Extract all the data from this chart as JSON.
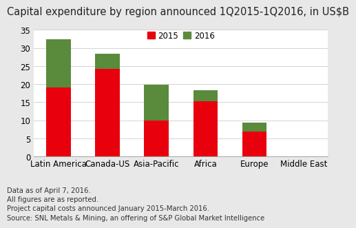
{
  "title": "Capital expenditure by region announced 1Q2015-1Q2016, in US$B",
  "categories": [
    "Latin America",
    "Canada-US",
    "Asia-Pacific",
    "Africa",
    "Europe",
    "Middle East"
  ],
  "values_2015": [
    19.0,
    24.2,
    10.0,
    15.3,
    7.0,
    0.0
  ],
  "values_2016": [
    13.3,
    4.2,
    9.8,
    3.0,
    2.3,
    0.15
  ],
  "color_2015": "#e8000d",
  "color_2016": "#5a8a3c",
  "ylim": [
    0,
    35
  ],
  "yticks": [
    0,
    5,
    10,
    15,
    20,
    25,
    30,
    35
  ],
  "legend_labels": [
    "2015",
    "2016"
  ],
  "footnote": "Data as of April 7, 2016.\nAll figures are as reported.\nProject capital costs announced January 2015-March 2016.\nSource: SNL Metals & Mining, an offering of S&P Global Market Intelligence",
  "background_color": "#e8e8e8",
  "plot_background_color": "#ffffff",
  "title_fontsize": 10.5,
  "tick_fontsize": 8.5,
  "footnote_fontsize": 7.2,
  "bar_width": 0.5
}
